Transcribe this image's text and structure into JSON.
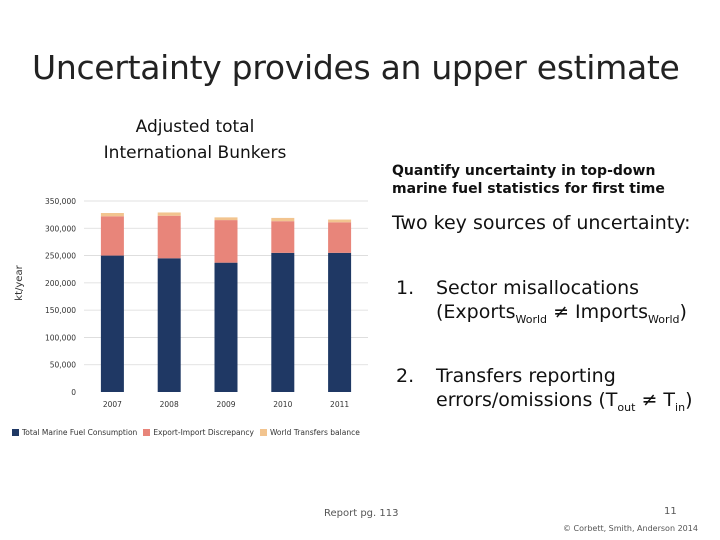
{
  "slide": {
    "title": "Uncertainty provides an upper estimate",
    "chart_title_line1": "Adjusted total",
    "chart_title_line2": "International Bunkers",
    "quantify_line1": "Quantify uncertainty in top-down",
    "quantify_line2": "marine fuel statistics for first time",
    "sources_heading": "Two key sources of uncertainty:",
    "item1": {
      "number": "1.",
      "line1": "Sector misallocations",
      "part_a": "(Exports",
      "sub_a": "World",
      "part_b": " ≠ Imports",
      "sub_b": "World",
      "part_c": ")"
    },
    "item2": {
      "number": "2.",
      "line1": "Transfers reporting",
      "part_a": "errors/omissions (T",
      "sub_a": "out",
      "part_b": " ≠ T",
      "sub_b": "in",
      "part_c": ")"
    },
    "report": "Report pg. 113",
    "page_number": "11",
    "copyright": "© Corbett, Smith, Anderson 2014"
  },
  "chart_data": {
    "type": "bar",
    "stacked": true,
    "categories": [
      "2007",
      "2008",
      "2009",
      "2010",
      "2011"
    ],
    "series": [
      {
        "name": "Total Marine Fuel Consumption",
        "color": "#1f3864",
        "values": [
          250000,
          245000,
          237000,
          255000,
          255000
        ]
      },
      {
        "name": "Export-Import Discrepancy",
        "color": "#e8857a",
        "values": [
          72000,
          78000,
          78000,
          58000,
          56000
        ]
      },
      {
        "name": "World Transfers balance",
        "color": "#f2c48f",
        "values": [
          6000,
          6000,
          5000,
          6000,
          5000
        ]
      }
    ],
    "ylabel": "kt/year",
    "ylim": [
      0,
      350000
    ],
    "yticks": [
      0,
      50000,
      100000,
      150000,
      200000,
      250000,
      300000,
      350000
    ],
    "ytick_labels": [
      "0",
      "50,000",
      "100,000",
      "150,000",
      "200,000",
      "250,000",
      "300,000",
      "350,000"
    ],
    "grid": true,
    "legend_position": "bottom"
  }
}
